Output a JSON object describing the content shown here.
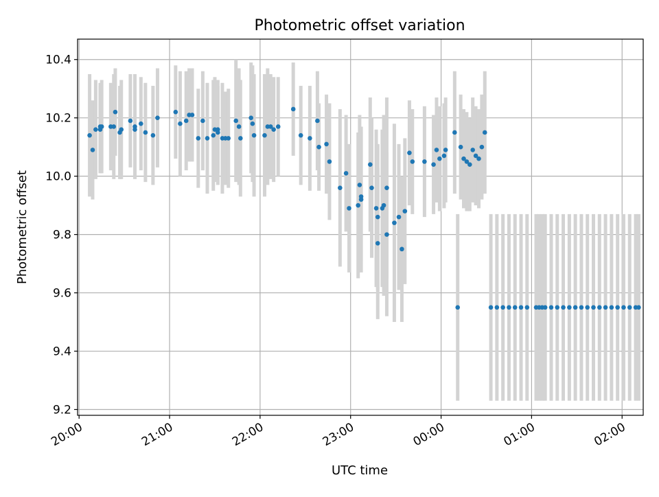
{
  "chart_data": {
    "type": "scatter",
    "title": "Photometric offset variation",
    "xlabel": "UTC time",
    "ylabel": "Photometric offset",
    "x_ticks": [
      "20:00",
      "21:00",
      "22:00",
      "23:00",
      "00:00",
      "01:00",
      "02:00"
    ],
    "y_ticks": [
      "9.2",
      "9.4",
      "9.6",
      "9.8",
      "10.0",
      "10.2",
      "10.4"
    ],
    "xlim": [
      "19:59",
      "02:14"
    ],
    "ylim": [
      9.18,
      10.47
    ],
    "grid": true,
    "error_bars": true,
    "point_color": "#1f77b4",
    "errorbar_color": "#d3d3d3",
    "series": [
      {
        "x": [
          "20:07",
          "20:09",
          "20:11",
          "20:14",
          "20:14",
          "20:15",
          "20:21",
          "20:23",
          "20:24",
          "20:27",
          "20:28",
          "20:34",
          "20:37",
          "20:37",
          "20:41",
          "20:44",
          "20:49",
          "20:52",
          "21:04",
          "21:07",
          "21:11",
          "21:13",
          "21:15",
          "21:19",
          "21:22",
          "21:25",
          "21:29",
          "21:30",
          "21:32",
          "21:32",
          "21:35",
          "21:37",
          "21:39",
          "21:44",
          "21:46",
          "21:47",
          "21:54",
          "21:55",
          "21:56",
          "22:03",
          "22:05",
          "22:07",
          "22:09",
          "22:12",
          "22:22",
          "22:27",
          "22:33",
          "22:38",
          "22:39",
          "22:44",
          "22:46",
          "22:53",
          "22:57",
          "22:59",
          "23:05",
          "23:06",
          "23:07",
          "23:07",
          "23:13",
          "23:14",
          "23:17",
          "23:18",
          "23:18",
          "23:21",
          "23:22",
          "23:24",
          "23:24",
          "23:29",
          "23:32",
          "23:34",
          "23:36",
          "23:39",
          "23:41",
          "23:49",
          "23:55",
          "23:57",
          "23:59",
          "00:02",
          "00:03",
          "00:09",
          "00:11",
          "00:13",
          "00:15",
          "00:17",
          "00:19",
          "00:21",
          "00:23",
          "00:25",
          "00:27",
          "00:29",
          "00:33",
          "00:37",
          "00:41",
          "00:45",
          "00:49",
          "00:53",
          "00:57",
          "01:03",
          "01:05",
          "01:07",
          "01:09",
          "01:13",
          "01:17",
          "01:21",
          "01:25",
          "01:29",
          "01:33",
          "01:37",
          "01:41",
          "01:45",
          "01:49",
          "01:53",
          "01:57",
          "02:01",
          "02:05",
          "02:09",
          "02:11"
        ],
        "y": [
          10.14,
          10.09,
          10.16,
          10.16,
          10.17,
          10.17,
          10.17,
          10.17,
          10.22,
          10.15,
          10.16,
          10.19,
          10.16,
          10.17,
          10.18,
          10.15,
          10.14,
          10.2,
          10.22,
          10.18,
          10.19,
          10.21,
          10.21,
          10.13,
          10.19,
          10.13,
          10.14,
          10.16,
          10.15,
          10.16,
          10.13,
          10.13,
          10.13,
          10.19,
          10.17,
          10.13,
          10.2,
          10.18,
          10.14,
          10.14,
          10.17,
          10.17,
          10.16,
          10.17,
          10.23,
          10.14,
          10.13,
          10.19,
          10.1,
          10.11,
          10.05,
          9.96,
          10.01,
          9.89,
          9.9,
          9.97,
          9.92,
          9.93,
          10.04,
          9.96,
          9.89,
          9.86,
          9.77,
          9.89,
          9.9,
          9.96,
          9.8,
          9.84,
          9.86,
          9.75,
          9.88,
          10.08,
          10.05,
          10.05,
          10.04,
          10.09,
          10.06,
          10.07,
          10.09,
          10.15,
          9.55,
          10.1,
          10.06,
          10.05,
          10.04,
          10.09,
          10.07,
          10.06,
          10.1,
          10.15,
          9.55,
          9.55,
          9.55,
          9.55,
          9.55,
          9.55,
          9.55,
          9.55,
          9.55,
          9.55,
          9.55,
          9.55,
          9.55,
          9.55,
          9.55,
          9.55,
          9.55,
          9.55,
          9.55,
          9.55,
          9.55,
          9.55,
          9.55,
          9.55,
          9.55,
          9.55,
          9.55
        ],
        "err": [
          0.21,
          0.17,
          0.17,
          0.15,
          0.15,
          0.16,
          0.15,
          0.18,
          0.15,
          0.16,
          0.17,
          0.16,
          0.15,
          0.18,
          0.16,
          0.17,
          0.17,
          0.17,
          0.16,
          0.18,
          0.17,
          0.16,
          0.16,
          0.17,
          0.17,
          0.19,
          0.19,
          0.18,
          0.18,
          0.15,
          0.19,
          0.16,
          0.17,
          0.21,
          0.2,
          0.2,
          0.19,
          0.2,
          0.21,
          0.21,
          0.2,
          0.18,
          0.18,
          0.17,
          0.16,
          0.17,
          0.18,
          0.17,
          0.15,
          0.17,
          0.2,
          0.27,
          0.2,
          0.22,
          0.25,
          0.24,
          0.25,
          0.22,
          0.23,
          0.24,
          0.27,
          0.25,
          0.26,
          0.27,
          0.31,
          0.31,
          0.28,
          0.34,
          0.25,
          0.25,
          0.25,
          0.18,
          0.18,
          0.19,
          0.17,
          0.18,
          0.18,
          0.18,
          0.18,
          0.21,
          0.32,
          0.18,
          0.17,
          0.17,
          0.16,
          0.18,
          0.17,
          0.17,
          0.18,
          0.21,
          0.32,
          0.32,
          0.32,
          0.32,
          0.32,
          0.32,
          0.32,
          0.32,
          0.32,
          0.32,
          0.32,
          0.32,
          0.32,
          0.32,
          0.32,
          0.32,
          0.32,
          0.32,
          0.32,
          0.32,
          0.32,
          0.32,
          0.32,
          0.32,
          0.32,
          0.32,
          0.32
        ]
      }
    ]
  }
}
